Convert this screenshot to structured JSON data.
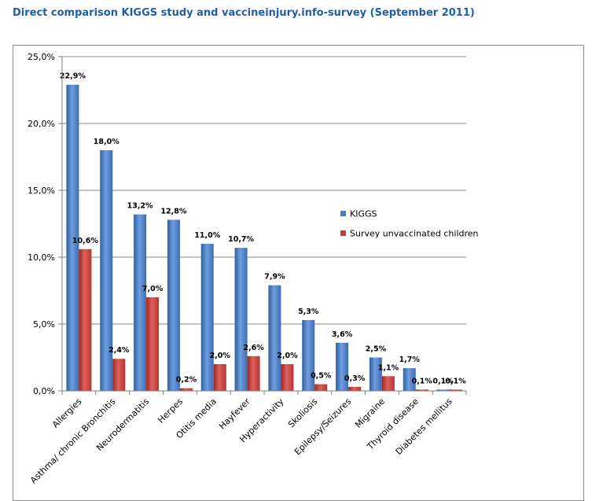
{
  "title": "Direct comparison KIGGS study and vaccineinjury.info-survey (September 2011)",
  "chart_data": {
    "type": "bar",
    "title": "Direct comparison KIGGS study and vaccineinjury.info-survey (September 2011)",
    "xlabel": "",
    "ylabel": "",
    "ylim": [
      0,
      25
    ],
    "yticks": [
      "0,0%",
      "5,0%",
      "10,0%",
      "15,0%",
      "20,0%",
      "25,0%"
    ],
    "grid": true,
    "legend_position": "right",
    "categories": [
      "Allergies",
      "Asthma/ chronic Bronchitis",
      "Neurodermatitis",
      "Herpes",
      "Otitis media",
      "Hayfever",
      "Hyperactivity",
      "Skoliosis",
      "Epilepsy/Seizures",
      "Migraine",
      "Thyroid disease",
      "Diabetes mellitus"
    ],
    "series": [
      {
        "name": "KIGGS",
        "color": "#4a7cc4",
        "values": [
          22.9,
          18.0,
          13.2,
          12.8,
          11.0,
          10.7,
          7.9,
          5.3,
          3.6,
          2.5,
          1.7,
          0.1
        ],
        "labels": [
          "22,9%",
          "18,0%",
          "13,2%",
          "12,8%",
          "11,0%",
          "10,7%",
          "7,9%",
          "5,3%",
          "3,6%",
          "2,5%",
          "1,7%",
          "0,1%"
        ]
      },
      {
        "name": "Survey unvaccinated children",
        "color": "#c83b37",
        "values": [
          10.6,
          2.4,
          7.0,
          0.2,
          2.0,
          2.6,
          2.0,
          0.5,
          0.3,
          1.1,
          0.1,
          0.1
        ],
        "labels": [
          "10,6%",
          "2,4%",
          "7,0%",
          "0,2%",
          "2,0%",
          "2,6%",
          "2,0%",
          "0,5%",
          "0,3%",
          "1,1%",
          "0,1%",
          "0,1%"
        ]
      }
    ]
  }
}
